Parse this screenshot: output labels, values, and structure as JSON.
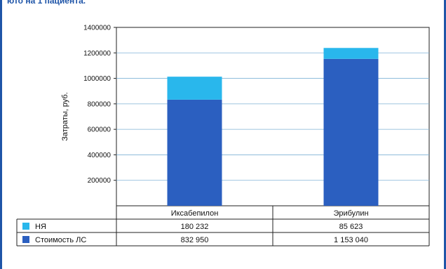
{
  "caption": "юто на 1 пациента.",
  "colors": {
    "frame": "#1f55a8",
    "series_drug": "#2b5fc0",
    "series_nya": "#29b7ec"
  },
  "chart_data": {
    "type": "bar",
    "stacked": true,
    "categories": [
      "Иксабепилон",
      "Эрибулин"
    ],
    "series": [
      {
        "name": "Стоимость ЛС",
        "values": [
          832950,
          1153040
        ],
        "color": "#2b5fc0"
      },
      {
        "name": "НЯ",
        "values": [
          180232,
          85623
        ],
        "color": "#29b7ec"
      }
    ],
    "ylabel": "Затраты, руб.",
    "ylim": [
      0,
      1400000
    ],
    "yticks": [
      200000,
      400000,
      600000,
      800000,
      1000000,
      1200000,
      1400000
    ],
    "ytick_labels": [
      "200000",
      "400000",
      "600000",
      "800000",
      "1000000",
      "1200000",
      "1400000"
    ],
    "grid": true,
    "legend": "data-table",
    "table": {
      "rows": [
        {
          "label": "НЯ",
          "values": [
            "180 232",
            "85 623"
          ]
        },
        {
          "label": "Стоимость ЛС",
          "values": [
            "832 950",
            "1 153 040"
          ]
        }
      ]
    }
  }
}
